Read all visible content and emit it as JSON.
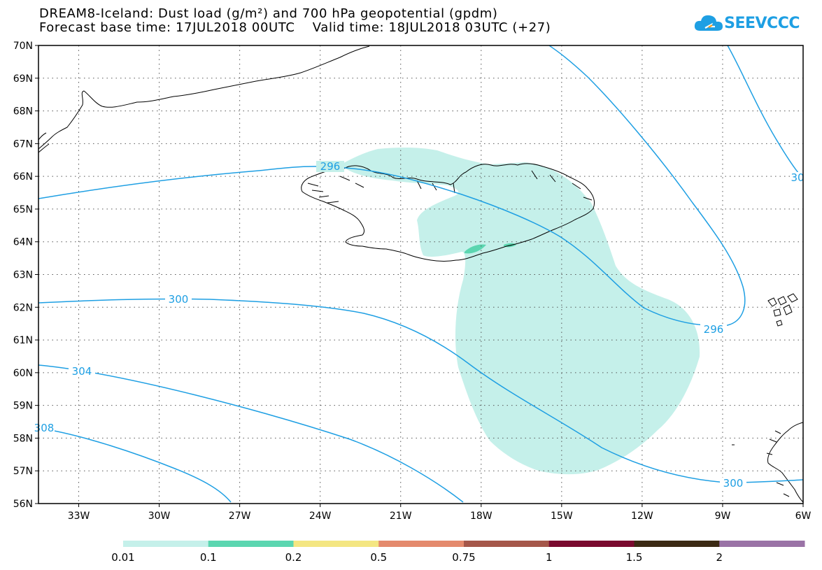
{
  "title": {
    "line1": "DREAM8-Iceland: Dust load (g/m²) and 700 hPa geopotential (gpdm)",
    "line2": "Forecast base time: 17JUL2018 00UTC    Valid time: 18JUL2018 03UTC (+27)"
  },
  "logo": {
    "text": "SEEVCCC",
    "icon": "cloud-icon",
    "color": "#1e9fe3"
  },
  "map": {
    "lat_range": [
      56,
      70
    ],
    "lon_range": [
      -34.5,
      -6
    ],
    "lat_labels": [
      "56N",
      "57N",
      "58N",
      "59N",
      "60N",
      "61N",
      "62N",
      "63N",
      "64N",
      "65N",
      "66N",
      "67N",
      "68N",
      "69N",
      "70N"
    ],
    "lon_labels": [
      "33W",
      "30W",
      "27W",
      "24W",
      "21W",
      "18W",
      "15W",
      "12W",
      "9W",
      "6W"
    ],
    "grid": "dotted",
    "contour_color": "#1e9fe3",
    "contour_labels": [
      "296",
      "300",
      "304",
      "308",
      "296",
      "300",
      "30"
    ],
    "dust_color": "#c5f0ea",
    "dust_high_color": "#5bd6b0"
  },
  "colorbar": {
    "labels": [
      "0.01",
      "0.1",
      "0.2",
      "0.5",
      "0.75",
      "1",
      "1.5",
      "2"
    ],
    "colors": [
      "#c5f0ea",
      "#5bd6b0",
      "#f4e682",
      "#e48a6d",
      "#a5574a",
      "#7a0a2f",
      "#3c2a14",
      "#9a73a6"
    ]
  }
}
